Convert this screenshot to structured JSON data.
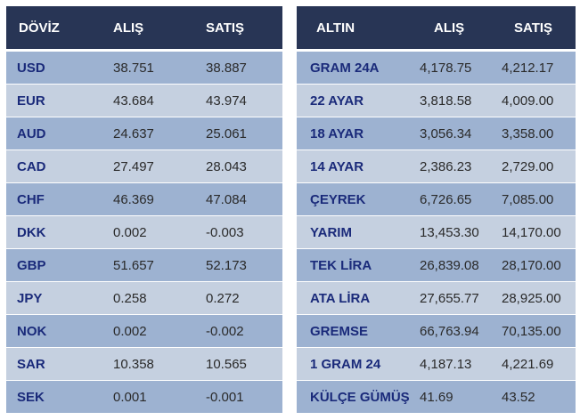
{
  "doviz": {
    "headers": [
      "DÖVİZ",
      "ALIŞ",
      "SATIŞ"
    ],
    "rows": [
      {
        "name": "USD",
        "buy": "38.751",
        "sell": "38.887"
      },
      {
        "name": "EUR",
        "buy": "43.684",
        "sell": "43.974"
      },
      {
        "name": "AUD",
        "buy": "24.637",
        "sell": "25.061"
      },
      {
        "name": "CAD",
        "buy": "27.497",
        "sell": "28.043"
      },
      {
        "name": "CHF",
        "buy": "46.369",
        "sell": "47.084"
      },
      {
        "name": "DKK",
        "buy": "0.002",
        "sell": "-0.003"
      },
      {
        "name": "GBP",
        "buy": "51.657",
        "sell": "52.173"
      },
      {
        "name": "JPY",
        "buy": "0.258",
        "sell": "0.272"
      },
      {
        "name": "NOK",
        "buy": "0.002",
        "sell": "-0.002"
      },
      {
        "name": "SAR",
        "buy": "10.358",
        "sell": "10.565"
      },
      {
        "name": "SEK",
        "buy": "0.001",
        "sell": "-0.001"
      }
    ]
  },
  "altin": {
    "headers": [
      "ALTIN",
      "ALIŞ",
      "SATIŞ"
    ],
    "rows": [
      {
        "name": "GRAM 24A",
        "buy": "4,178.75",
        "sell": "4,212.17"
      },
      {
        "name": "22 AYAR",
        "buy": "3,818.58",
        "sell": "4,009.00"
      },
      {
        "name": "18 AYAR",
        "buy": "3,056.34",
        "sell": "3,358.00"
      },
      {
        "name": "14 AYAR",
        "buy": "2,386.23",
        "sell": "2,729.00"
      },
      {
        "name": "ÇEYREK",
        "buy": "6,726.65",
        "sell": "7,085.00"
      },
      {
        "name": "YARIM",
        "buy": "13,453.30",
        "sell": "14,170.00"
      },
      {
        "name": "TEK LİRA",
        "buy": "26,839.08",
        "sell": "28,170.00"
      },
      {
        "name": "ATA LİRA",
        "buy": "27,655.77",
        "sell": "28,925.00"
      },
      {
        "name": "GREMSE",
        "buy": "66,763.94",
        "sell": "70,135.00"
      },
      {
        "name": "1 GRAM 24",
        "buy": "4,187.13",
        "sell": "4,221.69"
      },
      {
        "name": "KÜLÇE GÜMÜŞ",
        "buy": "41.69",
        "sell": "43.52"
      }
    ]
  },
  "colors": {
    "header_bg": "#283555",
    "header_text": "#ffffff",
    "row_dark": "#9db2d1",
    "row_light": "#c5d0e0",
    "name_text": "#1a2a7a",
    "value_text": "#2a2a2a"
  }
}
